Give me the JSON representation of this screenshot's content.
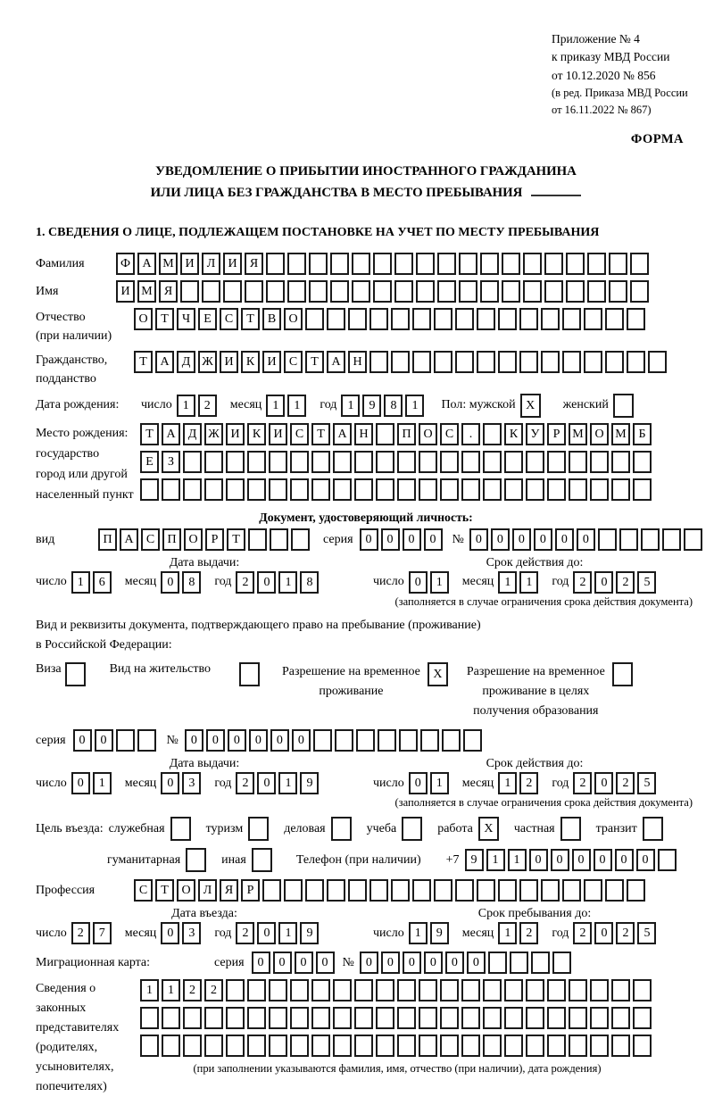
{
  "header": {
    "line1": "Приложение № 4",
    "line2": "к приказу МВД России",
    "line3": "от 10.12.2020 № 856",
    "line4": "(в ред. Приказа МВД России",
    "line5": "от 16.11.2022 № 867)",
    "form_label": "ФОРМА"
  },
  "title": {
    "line1": "УВЕДОМЛЕНИЕ О ПРИБЫТИИ ИНОСТРАННОГО ГРАЖДАНИНА",
    "line2": "ИЛИ ЛИЦА БЕЗ ГРАЖДАНСТВА В МЕСТО ПРЕБЫВАНИЯ"
  },
  "section1_heading": "1. СВЕДЕНИЯ О ЛИЦЕ, ПОДЛЕЖАЩЕМ ПОСТАНОВКЕ НА УЧЕТ ПО МЕСТУ ПРЕБЫВАНИЯ",
  "surname": {
    "label": "Фамилия",
    "boxes": {
      "chars": "ФАМИЛИЯ",
      "len": 25
    }
  },
  "name": {
    "label": "Имя",
    "boxes": {
      "chars": "ИМЯ",
      "len": 25
    }
  },
  "patronymic": {
    "label": "Отчество",
    "label2": "(при наличии)",
    "boxes": {
      "chars": "ОТЧЕСТВО",
      "len": 24
    }
  },
  "citizenship": {
    "label": "Гражданство,",
    "label2": "подданство",
    "boxes": {
      "chars": "ТАДЖИКИСТАН",
      "len": 25
    }
  },
  "birth_date": {
    "label": "Дата рождения:",
    "day_label": "число",
    "month_label": "месяц",
    "year_label": "год",
    "day": {
      "chars": "12",
      "len": 2
    },
    "month": {
      "chars": "11",
      "len": 2
    },
    "year": {
      "chars": "1981",
      "len": 4
    },
    "sex_label": "Пол: мужской",
    "male_box": {
      "chars": "X",
      "len": 1
    },
    "female_label": "женский",
    "female_box": {
      "chars": "",
      "len": 1
    }
  },
  "birth_place": {
    "label1": "Место рождения:",
    "label2": "государство",
    "label3": "город или другой",
    "label4": "населенный пункт",
    "row1": {
      "chars": "ТАДЖИКИСТАН ПОС. КУРМОМБ",
      "len": 24
    },
    "row2": {
      "chars": "ЕЗ",
      "len": 24
    },
    "row3": {
      "chars": "",
      "len": 24
    }
  },
  "id_doc": {
    "heading": "Документ, удостоверяющий личность:",
    "vid_label": "вид",
    "vid": {
      "chars": "ПАСПОРТ",
      "len": 10
    },
    "seriya_label": "серия",
    "seriya": {
      "chars": "0000",
      "len": 4
    },
    "num_label": "№",
    "num": {
      "chars": "000000",
      "len": 11
    }
  },
  "id_issue": {
    "left_heading": "Дата выдачи:",
    "right_heading": "Срок действия до:",
    "day_label": "число",
    "month_label": "месяц",
    "year_label": "год",
    "left": {
      "day": {
        "chars": "16",
        "len": 2
      },
      "month": {
        "chars": "08",
        "len": 2
      },
      "year": {
        "chars": "2018",
        "len": 4
      }
    },
    "right": {
      "day": {
        "chars": "01",
        "len": 2
      },
      "month": {
        "chars": "11",
        "len": 2
      },
      "year": {
        "chars": "2025",
        "len": 4
      }
    },
    "caption": "(заполняется в случае ограничения срока действия документа)"
  },
  "residence": {
    "line1": "Вид и реквизиты документа, подтверждающего право на пребывание (проживание)",
    "line2": "в Российской Федерации:",
    "opt1_label": "Виза",
    "opt1": {
      "chars": "",
      "len": 1
    },
    "opt2_label": "Вид на жительство",
    "opt2": {
      "chars": "",
      "len": 1
    },
    "opt3_line1": "Разрешение на временное",
    "opt3_line2": "проживание",
    "opt3": {
      "chars": "X",
      "len": 1
    },
    "opt4_line1": "Разрешение на временное",
    "opt4_line2": "проживание в целях",
    "opt4_line3": "получения образования",
    "opt4": {
      "chars": "",
      "len": 1
    }
  },
  "rtp": {
    "seriya_label": "серия",
    "seriya": {
      "chars": "00",
      "len": 4
    },
    "num_label": "№",
    "num": {
      "chars": "000000",
      "len": 14
    }
  },
  "rtp_issue": {
    "left_heading": "Дата выдачи:",
    "right_heading": "Срок действия до:",
    "day_label": "число",
    "month_label": "месяц",
    "year_label": "год",
    "left": {
      "day": {
        "chars": "01",
        "len": 2
      },
      "month": {
        "chars": "03",
        "len": 2
      },
      "year": {
        "chars": "2019",
        "len": 4
      }
    },
    "right": {
      "day": {
        "chars": "01",
        "len": 2
      },
      "month": {
        "chars": "12",
        "len": 2
      },
      "year": {
        "chars": "2025",
        "len": 4
      }
    },
    "caption": "(заполняется в случае ограничения срока действия документа)"
  },
  "purpose": {
    "label": "Цель въезда:",
    "opts1": [
      {
        "label": "служебная",
        "box": {
          "chars": "",
          "len": 1
        }
      },
      {
        "label": "туризм",
        "box": {
          "chars": "",
          "len": 1
        }
      },
      {
        "label": "деловая",
        "box": {
          "chars": "",
          "len": 1
        }
      },
      {
        "label": "учеба",
        "box": {
          "chars": "",
          "len": 1
        }
      },
      {
        "label": "работа",
        "box": {
          "chars": "X",
          "len": 1
        }
      },
      {
        "label": "частная",
        "box": {
          "chars": "",
          "len": 1
        }
      },
      {
        "label": "транзит",
        "box": {
          "chars": "",
          "len": 1
        }
      }
    ],
    "opts2": [
      {
        "label": "гуманитарная",
        "box": {
          "chars": "",
          "len": 1
        }
      },
      {
        "label": "иная",
        "box": {
          "chars": "",
          "len": 1
        }
      }
    ],
    "phone_label": "Телефон (при наличии)",
    "phone_prefix": "+7",
    "phone": {
      "chars": "911000000",
      "len": 10
    }
  },
  "profession": {
    "label": "Профессия",
    "boxes": {
      "chars": "СТОЛЯР",
      "len": 24
    }
  },
  "entry": {
    "left_heading": "Дата въезда:",
    "right_heading": "Срок пребывания до:",
    "day_label": "число",
    "month_label": "месяц",
    "year_label": "год",
    "left": {
      "day": {
        "chars": "27",
        "len": 2
      },
      "month": {
        "chars": "03",
        "len": 2
      },
      "year": {
        "chars": "2019",
        "len": 4
      }
    },
    "right": {
      "day": {
        "chars": "19",
        "len": 2
      },
      "month": {
        "chars": "12",
        "len": 2
      },
      "year": {
        "chars": "2025",
        "len": 4
      }
    }
  },
  "migration": {
    "label": "Миграционная карта:",
    "seriya_label": "серия",
    "seriya": {
      "chars": "0000",
      "len": 4
    },
    "num_label": "№",
    "num": {
      "chars": "000000",
      "len": 10
    }
  },
  "reps": {
    "label1": "Сведения о",
    "label2": "законных",
    "label3": "представителях",
    "label4": "(родителях,",
    "label5": "усыновителях,",
    "label6": "попечителях)",
    "row1": {
      "chars": "1122",
      "len": 24
    },
    "row2": {
      "chars": "",
      "len": 24
    },
    "row3": {
      "chars": "",
      "len": 24
    },
    "caption": "(при заполнении указываются фамилия, имя, отчество (при наличии), дата рождения)"
  }
}
